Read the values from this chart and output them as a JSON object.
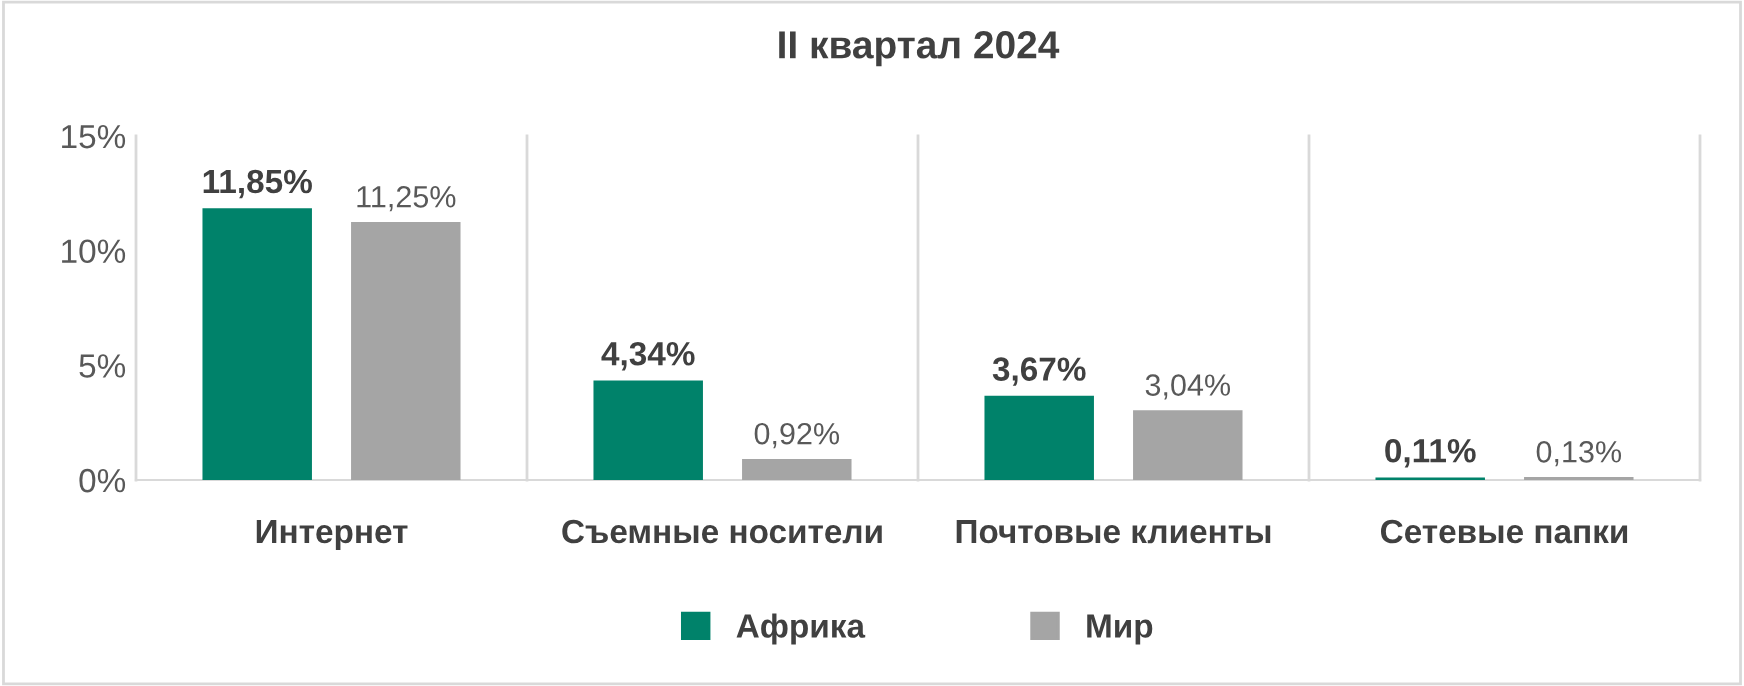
{
  "chart_data": {
    "type": "bar",
    "title": "II квартал 2024",
    "categories": [
      "Интернет",
      "Съемные носители",
      "Почтовые клиенты",
      "Сетевые папки"
    ],
    "series": [
      {
        "name": "Африка",
        "color": "#00826a",
        "values": [
          11.85,
          4.34,
          3.67,
          0.11
        ],
        "value_labels": [
          "11,85%",
          "4,34%",
          "3,67%",
          "0,11%"
        ]
      },
      {
        "name": "Мир",
        "color": "#a5a5a5",
        "values": [
          11.25,
          0.92,
          3.04,
          0.13
        ],
        "value_labels": [
          "11,25%",
          "0,92%",
          "3,04%",
          "0,13%"
        ]
      }
    ],
    "ylim": [
      0,
      15
    ],
    "yticks": [
      {
        "value": 0,
        "label": "0%"
      },
      {
        "value": 5,
        "label": "5%"
      },
      {
        "value": 10,
        "label": "10%"
      },
      {
        "value": 15,
        "label": "15%"
      }
    ],
    "grid": "x",
    "legend": "bottom"
  }
}
